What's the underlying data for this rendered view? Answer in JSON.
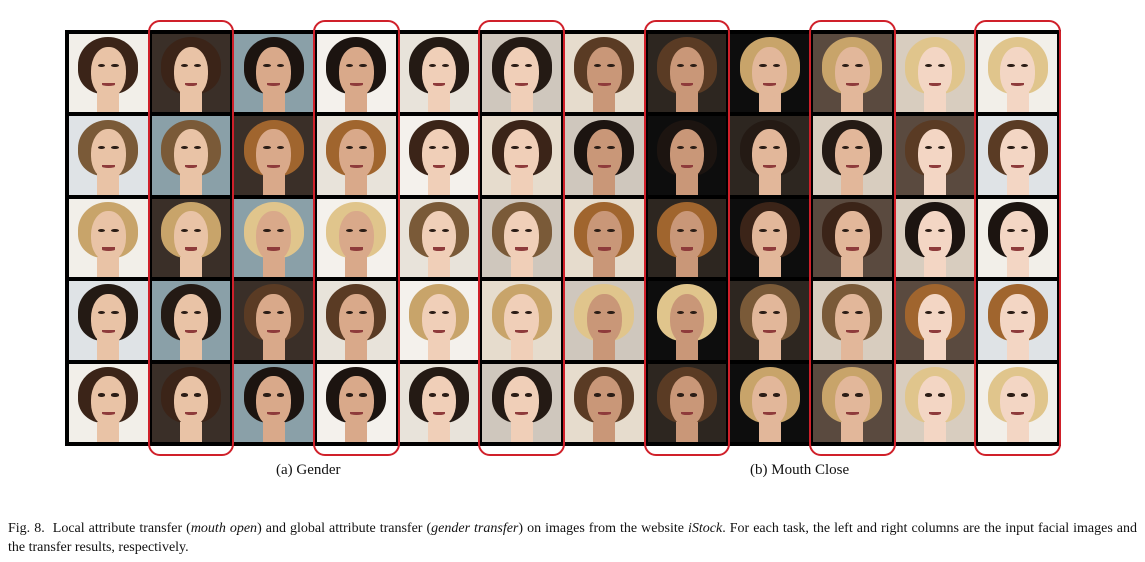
{
  "figure": {
    "subcaptions": {
      "a": "(a) Gender",
      "b": "(b) Mouth Close"
    },
    "caption": {
      "label": "Fig. 8.",
      "t1": "Local attribute transfer (",
      "i1": "mouth open",
      "t2": ") and global attribute transfer (",
      "i2": "gender transfer",
      "t3": ") on images from the website ",
      "i3": "iStock",
      "t4": ". For each task, the left and right columns are the input facial images and the transfer results, respectively."
    },
    "colors": {
      "highlight": "#d0202a",
      "grid_border": "#000000"
    }
  }
}
